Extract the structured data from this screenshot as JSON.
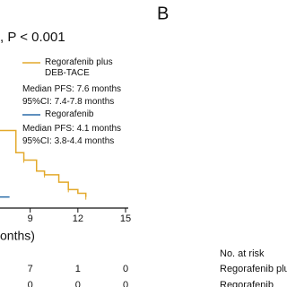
{
  "panel_label": "B",
  "chart_data": {
    "type": "line",
    "step": true,
    "title": ", P < 0.001",
    "x_label": "onths)",
    "xlim": [
      7.1,
      15
    ],
    "xticks": [
      9,
      12,
      15
    ],
    "ylim": [
      0,
      0.6
    ],
    "series": [
      {
        "name": "Regorafenib plus DEB-TACE",
        "color": "#e3a92b",
        "stats": [
          "Median PFS: 7.6 months",
          "95%CI: 7.4-7.8 months"
        ],
        "x": [
          7.1,
          8.1,
          8.6,
          9.4,
          9.9,
          10.8,
          11.4,
          12.0,
          12.5
        ],
        "values": [
          0.21,
          0.15,
          0.13,
          0.1,
          0.09,
          0.07,
          0.05,
          0.04,
          0.03
        ]
      },
      {
        "name": "Regorafenib",
        "color": "#2a6ca8",
        "stats": [
          "Median PFS: 4.1 months",
          "95%CI: 3.8-4.4 months"
        ],
        "x": [
          7.1,
          7.7
        ],
        "values": [
          0.03,
          0.03
        ]
      }
    ],
    "risk_table": {
      "title": "No. at risk",
      "rows": [
        {
          "label": "Regorafenib plus DEB-TACE",
          "values": [
            7,
            1,
            0
          ]
        },
        {
          "label": "Regorafenib",
          "values": [
            0,
            0,
            0
          ]
        }
      ]
    }
  }
}
